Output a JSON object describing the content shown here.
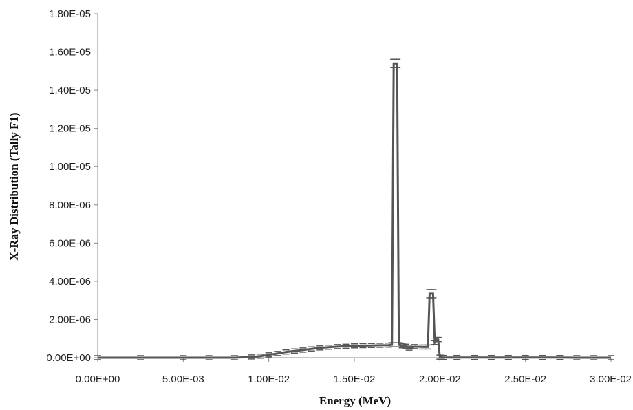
{
  "chart_data": {
    "type": "line",
    "title": "",
    "xlabel": "Energy (MeV)",
    "ylabel": "X-Ray Distribution (Tally F1)",
    "xlim": [
      0,
      0.03
    ],
    "ylim": [
      0,
      1.8e-05
    ],
    "x_ticks": [
      "0.00E+00",
      "5.00E-03",
      "1.00E-02",
      "1.50E-02",
      "2.00E-02",
      "2.50E-02",
      "3.00E-02"
    ],
    "y_ticks": [
      "0.00E+00",
      "2.00E-06",
      "4.00E-06",
      "6.00E-06",
      "8.00E-06",
      "1.00E-05",
      "1.20E-05",
      "1.40E-05",
      "1.60E-05",
      "1.80E-05"
    ],
    "grid": false,
    "legend": "none",
    "series": [
      {
        "line_color": "#555555",
        "x": [
          0,
          0.0025,
          0.005,
          0.0065,
          0.008,
          0.009,
          0.0095,
          0.01,
          0.0105,
          0.011,
          0.0115,
          0.012,
          0.0125,
          0.013,
          0.0135,
          0.014,
          0.0145,
          0.015,
          0.0155,
          0.016,
          0.0165,
          0.017,
          0.0172,
          0.0173,
          0.0175,
          0.0176,
          0.0178,
          0.018,
          0.0182,
          0.0185,
          0.019,
          0.0193,
          0.0194,
          0.0196,
          0.0197,
          0.0198,
          0.0199,
          0.02,
          0.0201,
          0.0202,
          0.021,
          0.022,
          0.023,
          0.024,
          0.025,
          0.026,
          0.027,
          0.028,
          0.029,
          0.03
        ],
        "y": [
          0,
          0,
          0,
          0,
          0,
          4e-08,
          8e-08,
          1.5e-07,
          2.2e-07,
          3e-07,
          3.5e-07,
          4e-07,
          4.6e-07,
          5.1e-07,
          5.5e-07,
          5.8e-07,
          6e-07,
          6.2e-07,
          6.3e-07,
          6.4e-07,
          6.5e-07,
          6.6e-07,
          6.8e-07,
          1.54e-05,
          1.54e-05,
          6.8e-07,
          6.2e-07,
          6e-07,
          5e-07,
          5.8e-07,
          5.6e-07,
          5.6e-07,
          3.35e-06,
          3.35e-06,
          8e-07,
          9.5e-07,
          9.5e-07,
          3e-08,
          2e-08,
          1e-08,
          1e-08,
          1e-08,
          1e-08,
          1e-08,
          1e-08,
          1e-08,
          1e-08,
          0,
          0,
          0
        ]
      }
    ]
  }
}
